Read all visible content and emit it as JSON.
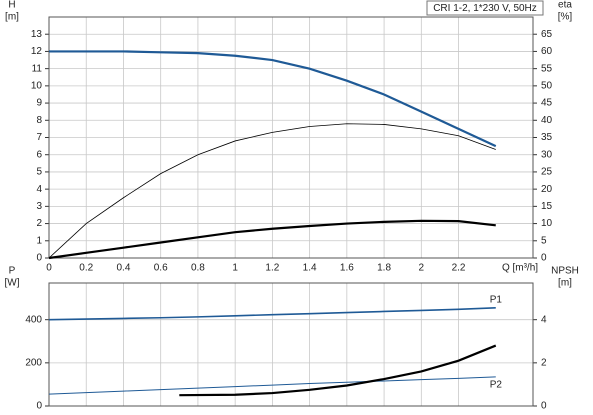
{
  "chart_data": [
    {
      "type": "line",
      "annotation": "CRI 1-2, 1*230 V, 50Hz",
      "ylabel": "H",
      "yunit": "[m]",
      "y2label": "eta",
      "y2unit": "[%]",
      "xlabel": "Q [m³/h]",
      "xlim": [
        0,
        2.6
      ],
      "xticks": [
        0,
        0.2,
        0.4,
        0.6,
        0.8,
        1.0,
        1.2,
        1.4,
        1.6,
        1.8,
        2.0,
        2.2
      ],
      "xtick_labels": true,
      "ylim": [
        0,
        14
      ],
      "yticks": [
        0,
        1,
        2,
        3,
        4,
        5,
        6,
        7,
        8,
        9,
        10,
        11,
        12,
        13
      ],
      "y2lim": [
        0,
        70
      ],
      "y2ticks": [
        0,
        5,
        10,
        15,
        20,
        25,
        30,
        35,
        40,
        45,
        50,
        55,
        60,
        65
      ],
      "grid": true,
      "x": [
        0,
        0.2,
        0.4,
        0.6,
        0.8,
        1.0,
        1.2,
        1.4,
        1.6,
        1.8,
        2.0,
        2.2,
        2.4
      ],
      "series": [
        {
          "color": "#1f5a96",
          "width": 2.2,
          "values": [
            12,
            12,
            12,
            11.95,
            11.9,
            11.75,
            11.5,
            11,
            10.3,
            9.5,
            8.5,
            7.5,
            6.5
          ]
        },
        {
          "color": "#000000",
          "width": 0.8,
          "axis": "y2",
          "values": [
            0,
            10,
            17.5,
            24.5,
            30,
            34,
            36.5,
            38.2,
            39,
            38.8,
            37.5,
            35.5,
            31.5
          ]
        },
        {
          "color": "#000000",
          "width": 2.2,
          "axis": "y2",
          "values": [
            0,
            1.5,
            3,
            4.5,
            6,
            7.5,
            8.5,
            9.3,
            10,
            10.5,
            10.8,
            10.7,
            9.5
          ]
        }
      ]
    },
    {
      "type": "line",
      "ylabel": "P",
      "yunit": "[W]",
      "y2label": "NPSH",
      "y2unit": "[m]",
      "xlim": [
        0,
        2.6
      ],
      "xticks": [
        0,
        0.2,
        0.4,
        0.6,
        0.8,
        1.0,
        1.2,
        1.4,
        1.6,
        1.8,
        2.0,
        2.2
      ],
      "xtick_labels": false,
      "ylim": [
        0,
        570
      ],
      "yticks": [
        0,
        200,
        400
      ],
      "y2lim": [
        0,
        5.7
      ],
      "y2ticks": [
        0,
        2,
        4
      ],
      "grid": true,
      "x": [
        0,
        0.2,
        0.4,
        0.6,
        0.8,
        1.0,
        1.2,
        1.4,
        1.6,
        1.8,
        2.0,
        2.2,
        2.4
      ],
      "series": [
        {
          "name": "P1",
          "color": "#1f5a96",
          "width": 1.6,
          "values": [
            400,
            403,
            406,
            409,
            413,
            418,
            423,
            428,
            433,
            438,
            443,
            448,
            455
          ]
        },
        {
          "name": "P2",
          "color": "#1f5a96",
          "width": 1,
          "values": [
            55,
            62,
            69,
            76,
            83,
            90,
            97,
            104,
            110,
            116,
            122,
            128,
            135
          ]
        },
        {
          "color": "#000000",
          "width": 2.2,
          "axis": "y2",
          "x": [
            0.7,
            1.0,
            1.2,
            1.4,
            1.6,
            1.8,
            2.0,
            2.2,
            2.4
          ],
          "values": [
            0.5,
            0.52,
            0.6,
            0.75,
            0.95,
            1.25,
            1.6,
            2.1,
            2.8
          ]
        }
      ]
    }
  ]
}
